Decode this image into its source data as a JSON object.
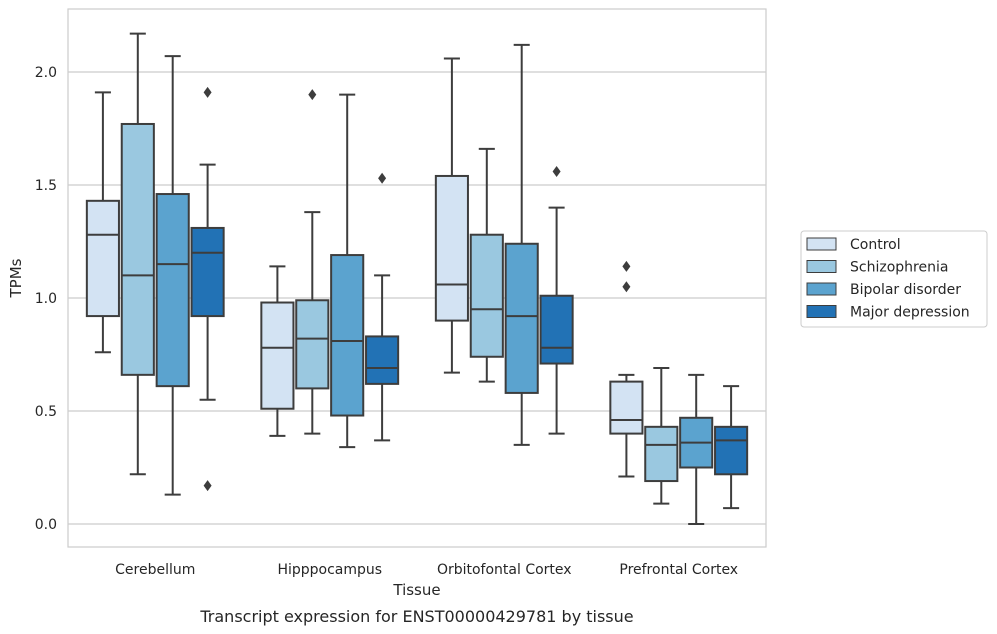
{
  "chart_data": {
    "type": "box",
    "title": "",
    "caption": "Transcript expression for ENST00000429781 by tissue",
    "xlabel": "Tissue",
    "ylabel": "TPMs",
    "ylim": [
      -0.1,
      2.28
    ],
    "yticks": [
      0.0,
      0.5,
      1.0,
      1.5,
      2.0
    ],
    "ytick_labels": [
      "0.0",
      "0.5",
      "1.0",
      "1.5",
      "2.0"
    ],
    "grid": "horizontal",
    "legend_position": "right",
    "categories": [
      "Cerebellum",
      "Hipppocampus",
      "Orbitofontal Cortex",
      "Prefrontal Cortex"
    ],
    "series": [
      {
        "name": "Control",
        "color": "#d3e3f3",
        "boxes": [
          {
            "whislo": 0.76,
            "q1": 0.92,
            "med": 1.28,
            "q3": 1.43,
            "whishi": 1.91,
            "fliers": []
          },
          {
            "whislo": 0.39,
            "q1": 0.51,
            "med": 0.78,
            "q3": 0.98,
            "whishi": 1.14,
            "fliers": []
          },
          {
            "whislo": 0.67,
            "q1": 0.9,
            "med": 1.06,
            "q3": 1.54,
            "whishi": 2.06,
            "fliers": []
          },
          {
            "whislo": 0.21,
            "q1": 0.4,
            "med": 0.46,
            "q3": 0.63,
            "whishi": 0.66,
            "fliers": [
              1.05,
              1.14
            ]
          }
        ]
      },
      {
        "name": "Schizophrenia",
        "color": "#9ac8e0",
        "boxes": [
          {
            "whislo": 0.22,
            "q1": 0.66,
            "med": 1.1,
            "q3": 1.77,
            "whishi": 2.17,
            "fliers": []
          },
          {
            "whislo": 0.4,
            "q1": 0.6,
            "med": 0.82,
            "q3": 0.99,
            "whishi": 1.38,
            "fliers": [
              1.9
            ]
          },
          {
            "whislo": 0.63,
            "q1": 0.74,
            "med": 0.95,
            "q3": 1.28,
            "whishi": 1.66,
            "fliers": []
          },
          {
            "whislo": 0.09,
            "q1": 0.19,
            "med": 0.35,
            "q3": 0.43,
            "whishi": 0.69,
            "fliers": []
          }
        ]
      },
      {
        "name": "Bipolar disorder",
        "color": "#5ba3cf",
        "boxes": [
          {
            "whislo": 0.13,
            "q1": 0.61,
            "med": 1.15,
            "q3": 1.46,
            "whishi": 2.07,
            "fliers": []
          },
          {
            "whislo": 0.34,
            "q1": 0.48,
            "med": 0.81,
            "q3": 1.19,
            "whishi": 1.9,
            "fliers": []
          },
          {
            "whislo": 0.35,
            "q1": 0.58,
            "med": 0.92,
            "q3": 1.24,
            "whishi": 2.12,
            "fliers": []
          },
          {
            "whislo": 0.0,
            "q1": 0.25,
            "med": 0.36,
            "q3": 0.47,
            "whishi": 0.66,
            "fliers": []
          }
        ]
      },
      {
        "name": "Major depression",
        "color": "#2272b5",
        "boxes": [
          {
            "whislo": 0.55,
            "q1": 0.92,
            "med": 1.2,
            "q3": 1.31,
            "whishi": 1.59,
            "fliers": [
              1.91,
              0.17
            ]
          },
          {
            "whislo": 0.37,
            "q1": 0.62,
            "med": 0.69,
            "q3": 0.83,
            "whishi": 1.1,
            "fliers": [
              1.53
            ]
          },
          {
            "whislo": 0.4,
            "q1": 0.71,
            "med": 0.78,
            "q3": 1.01,
            "whishi": 1.4,
            "fliers": [
              1.56
            ]
          },
          {
            "whislo": 0.07,
            "q1": 0.22,
            "med": 0.37,
            "q3": 0.43,
            "whishi": 0.61,
            "fliers": []
          }
        ]
      }
    ]
  }
}
